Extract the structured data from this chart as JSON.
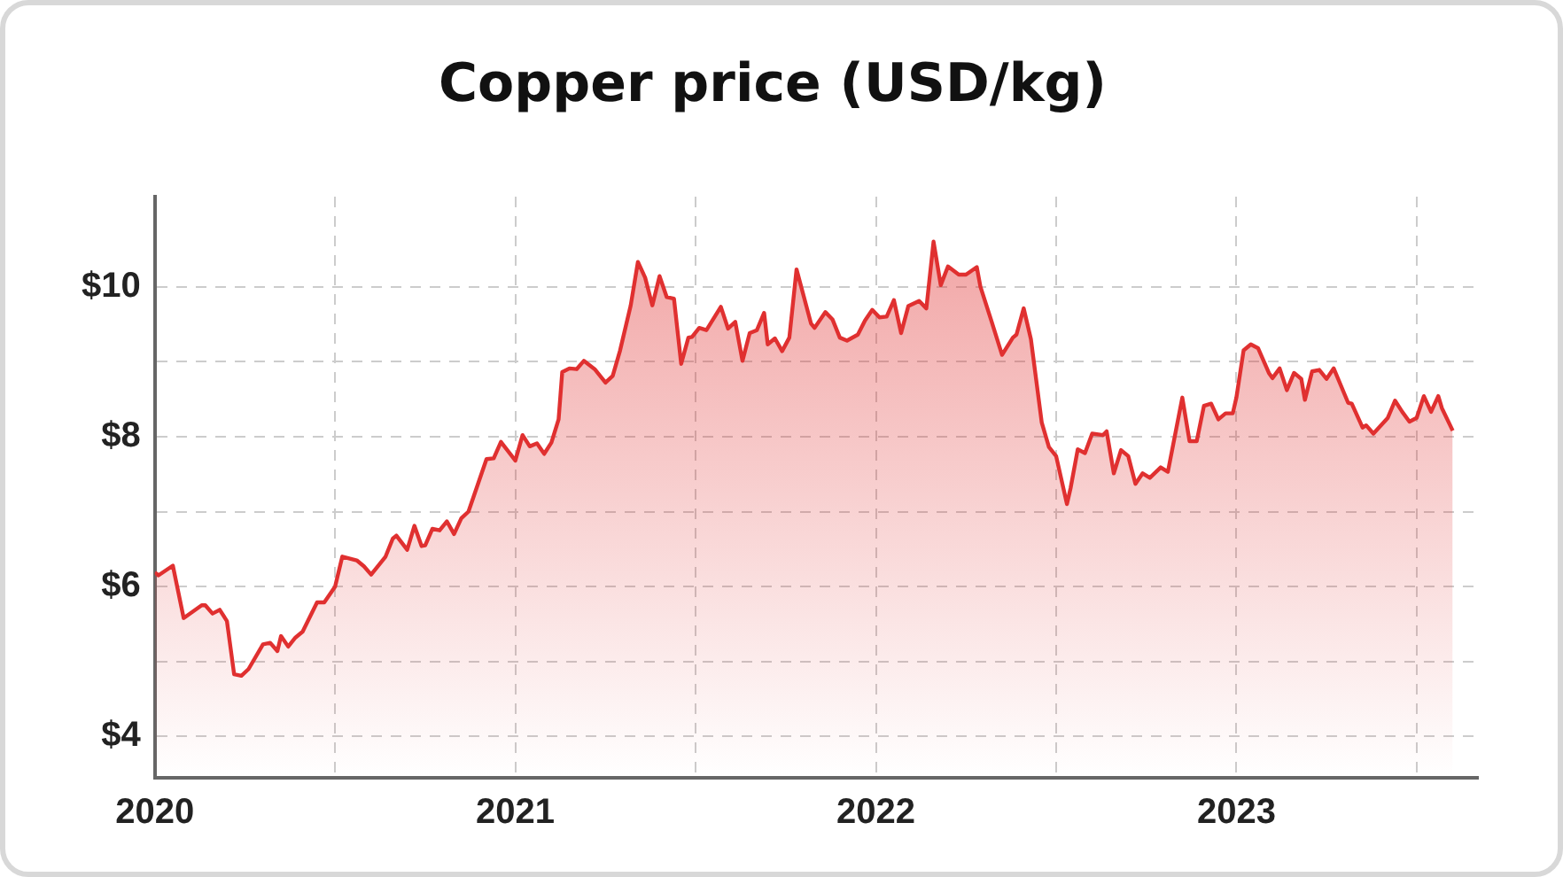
{
  "chart_data": {
    "type": "area",
    "title": "Copper price (USD/kg)",
    "x": [
      2020.0,
      2020.01,
      2020.05,
      2020.08,
      2020.13,
      2020.14,
      2020.16,
      2020.18,
      2020.2,
      2020.22,
      2020.24,
      2020.26,
      2020.3,
      2020.32,
      2020.34,
      2020.35,
      2020.37,
      2020.39,
      2020.41,
      2020.45,
      2020.47,
      2020.5,
      2020.52,
      2020.56,
      2020.58,
      2020.6,
      2020.64,
      2020.66,
      2020.67,
      2020.7,
      2020.72,
      2020.74,
      2020.75,
      2020.77,
      2020.79,
      2020.81,
      2020.83,
      2020.85,
      2020.87,
      2020.92,
      2020.94,
      2020.96,
      2021.0,
      2021.02,
      2021.04,
      2021.06,
      2021.08,
      2021.1,
      2021.12,
      2021.13,
      2021.15,
      2021.17,
      2021.19,
      2021.22,
      2021.25,
      2021.27,
      2021.29,
      2021.32,
      2021.34,
      2021.36,
      2021.38,
      2021.4,
      2021.42,
      2021.44,
      2021.46,
      2021.48,
      2021.49,
      2021.51,
      2021.53,
      2021.57,
      2021.59,
      2021.61,
      2021.63,
      2021.65,
      2021.67,
      2021.69,
      2021.7,
      2021.72,
      2021.74,
      2021.76,
      2021.78,
      2021.82,
      2021.83,
      2021.86,
      2021.88,
      2021.9,
      2021.92,
      2021.95,
      2021.97,
      2021.99,
      2022.01,
      2022.03,
      2022.05,
      2022.07,
      2022.09,
      2022.12,
      2022.14,
      2022.16,
      2022.18,
      2022.2,
      2022.23,
      2022.25,
      2022.28,
      2022.29,
      2022.32,
      2022.35,
      2022.38,
      2022.39,
      2022.41,
      2022.43,
      2022.46,
      2022.48,
      2022.5,
      2022.53,
      2022.54,
      2022.56,
      2022.58,
      2022.6,
      2022.63,
      2022.64,
      2022.66,
      2022.68,
      2022.7,
      2022.72,
      2022.74,
      2022.76,
      2022.79,
      2022.81,
      2022.85,
      2022.87,
      2022.89,
      2022.91,
      2022.93,
      2022.95,
      2022.97,
      2022.99,
      2023.0,
      2023.02,
      2023.04,
      2023.06,
      2023.09,
      2023.1,
      2023.12,
      2023.14,
      2023.16,
      2023.18,
      2023.19,
      2023.21,
      2023.23,
      2023.25,
      2023.27,
      2023.31,
      2023.32,
      2023.35,
      2023.36,
      2023.38,
      2023.42,
      2023.44,
      2023.46,
      2023.48,
      2023.5,
      2023.52,
      2023.54,
      2023.56,
      2023.57,
      2023.6
    ],
    "series": [
      {
        "color": "#e03030",
        "values": [
          6.19,
          6.15,
          6.28,
          5.58,
          5.75,
          5.75,
          5.64,
          5.69,
          5.54,
          4.83,
          4.81,
          4.9,
          5.23,
          5.25,
          5.14,
          5.34,
          5.2,
          5.32,
          5.4,
          5.79,
          5.79,
          6.0,
          6.4,
          6.35,
          6.27,
          6.16,
          6.4,
          6.64,
          6.68,
          6.49,
          6.81,
          6.54,
          6.55,
          6.77,
          6.75,
          6.87,
          6.7,
          6.91,
          7.0,
          7.7,
          7.71,
          7.93,
          7.68,
          8.02,
          7.87,
          7.91,
          7.77,
          7.92,
          8.23,
          8.86,
          8.91,
          8.9,
          9.01,
          8.9,
          8.72,
          8.81,
          9.14,
          9.75,
          10.33,
          10.12,
          9.75,
          10.14,
          9.86,
          9.84,
          8.97,
          9.32,
          9.33,
          9.45,
          9.42,
          9.73,
          9.44,
          9.53,
          9.01,
          9.38,
          9.42,
          9.65,
          9.23,
          9.31,
          9.14,
          9.32,
          10.23,
          9.51,
          9.45,
          9.66,
          9.56,
          9.32,
          9.28,
          9.36,
          9.55,
          9.69,
          9.59,
          9.6,
          9.82,
          9.38,
          9.74,
          9.81,
          9.71,
          10.6,
          10.02,
          10.27,
          10.16,
          10.16,
          10.26,
          10.0,
          9.55,
          9.09,
          9.32,
          9.36,
          9.71,
          9.3,
          8.19,
          7.86,
          7.74,
          7.1,
          7.31,
          7.83,
          7.78,
          8.04,
          8.02,
          8.07,
          7.51,
          7.82,
          7.74,
          7.37,
          7.51,
          7.45,
          7.59,
          7.53,
          8.52,
          7.94,
          7.94,
          8.41,
          8.44,
          8.23,
          8.31,
          8.31,
          8.52,
          9.15,
          9.23,
          9.18,
          8.85,
          8.78,
          8.91,
          8.62,
          8.85,
          8.77,
          8.49,
          8.87,
          8.89,
          8.77,
          8.91,
          8.45,
          8.44,
          8.12,
          8.15,
          8.04,
          8.25,
          8.48,
          8.33,
          8.2,
          8.25,
          8.54,
          8.33,
          8.54,
          8.38,
          8.08
        ]
      }
    ],
    "xlim": [
      2020,
      2023.67
    ],
    "xticks": [
      2020,
      {
        "value": 2020.5,
        "label": null
      },
      2021,
      {
        "value": 2021.5,
        "label": null
      },
      2022,
      {
        "value": 2022.5,
        "label": null
      },
      2023,
      {
        "value": 2023.5,
        "label": null
      }
    ],
    "ylim": [
      3.45,
      11.2
    ],
    "yticks": [
      {
        "value": 4,
        "label": "$4"
      },
      {
        "value": 5,
        "label": null
      },
      {
        "value": 6,
        "label": "$6"
      },
      {
        "value": 7,
        "label": null
      },
      {
        "value": 8,
        "label": "$8"
      },
      {
        "value": 9,
        "label": null
      },
      {
        "value": 10,
        "label": "$10"
      }
    ],
    "grid": true,
    "legend": false,
    "marker": "none",
    "line_style": "solid"
  }
}
